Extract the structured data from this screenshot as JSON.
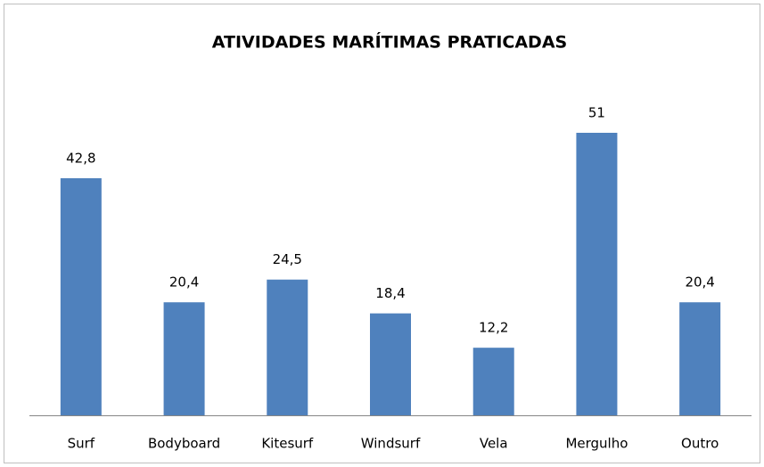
{
  "chart_data": {
    "type": "bar",
    "title": "ATIVIDADES MARÍTIMAS PRATICADAS",
    "categories": [
      "Surf",
      "Bodyboard",
      "Kitesurf",
      "Windsurf",
      "Vela",
      "Mergulho",
      "Outro"
    ],
    "values": [
      42.8,
      20.4,
      24.5,
      18.4,
      12.2,
      51,
      20.4
    ],
    "value_labels": [
      "42,8",
      "20,4",
      "24,5",
      "18,4",
      "12,2",
      "51",
      "20,4"
    ],
    "color": "#4f81bd"
  }
}
